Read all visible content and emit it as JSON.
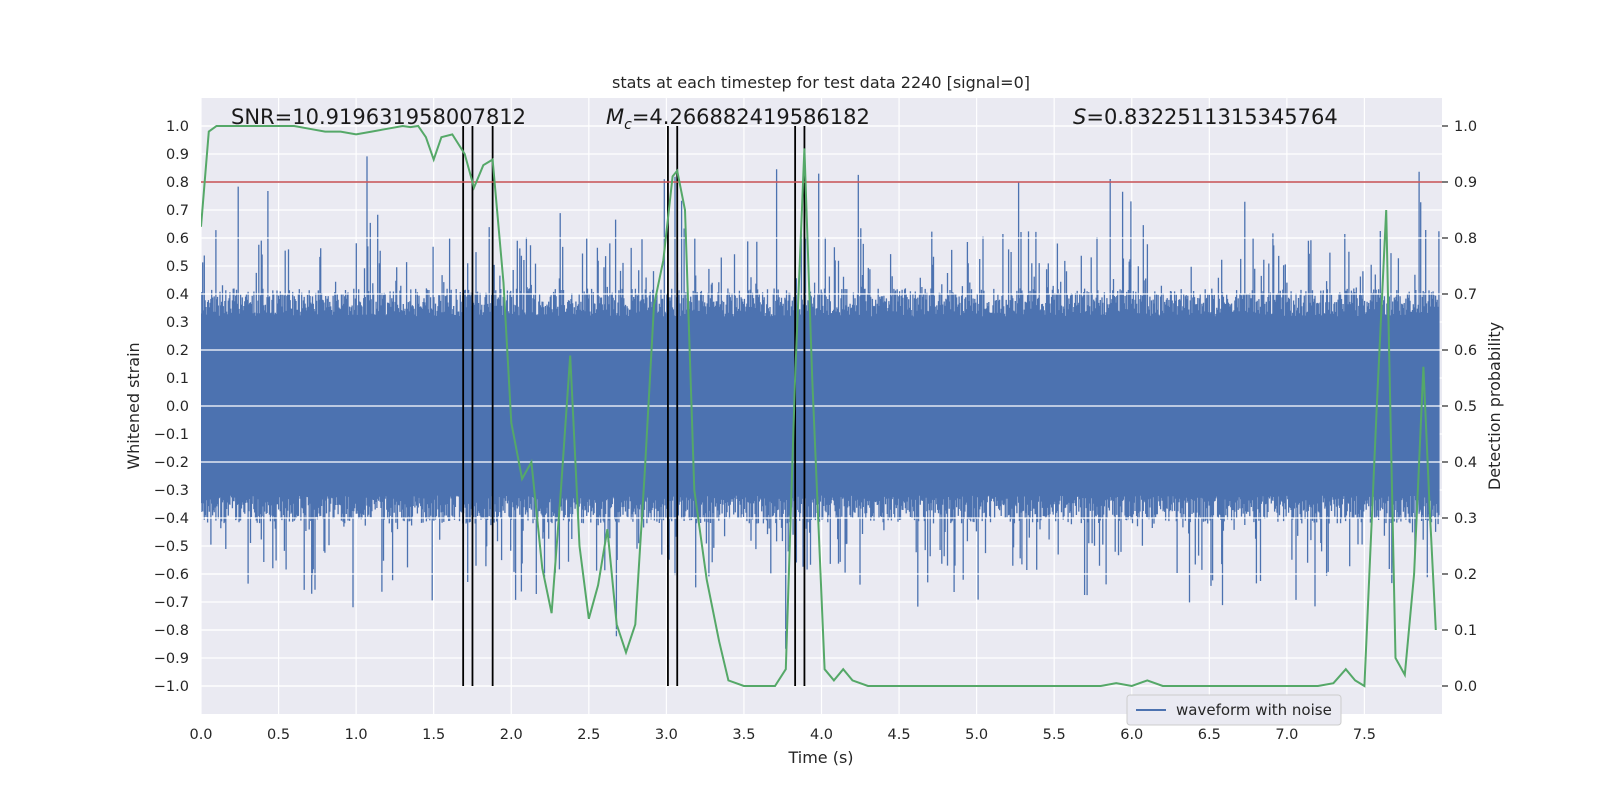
{
  "chart_data": {
    "type": "line",
    "title": "stats at each timestep for test data 2240 [signal=0]",
    "xlabel": "Time (s)",
    "ylabel_left": "Whitened strain",
    "ylabel_right": "Detection probability",
    "xlim": [
      0.0,
      8.0
    ],
    "ylim_left": [
      -1.1,
      1.1
    ],
    "ylim_right": [
      -0.05,
      1.05
    ],
    "x_ticks": [
      0.0,
      0.5,
      1.0,
      1.5,
      2.0,
      2.5,
      3.0,
      3.5,
      4.0,
      4.5,
      5.0,
      5.5,
      6.0,
      6.5,
      7.0,
      7.5
    ],
    "x_tick_labels": [
      "0.0",
      "0.5",
      "1.0",
      "1.5",
      "2.0",
      "2.5",
      "3.0",
      "3.5",
      "4.0",
      "4.5",
      "5.0",
      "5.5",
      "6.0",
      "6.5",
      "7.0",
      "7.5"
    ],
    "y_left_ticks": [
      1.0,
      0.9,
      0.8,
      0.7,
      0.6,
      0.5,
      0.4,
      0.3,
      0.2,
      0.1,
      0.0,
      -0.1,
      -0.2,
      -0.3,
      -0.4,
      -0.5,
      -0.6,
      -0.7,
      -0.8,
      -0.9,
      -1.0
    ],
    "y_left_tick_labels": [
      "1.0",
      "0.9",
      "0.8",
      "0.7",
      "0.6",
      "0.5",
      "0.4",
      "0.3",
      "0.2",
      "0.1",
      "0.0",
      "−0.1",
      "−0.2",
      "−0.3",
      "−0.4",
      "−0.5",
      "−0.6",
      "−0.7",
      "−0.8",
      "−0.9",
      "−1.0"
    ],
    "y_right_ticks": [
      1.0,
      0.9,
      0.8,
      0.7,
      0.6,
      0.5,
      0.4,
      0.3,
      0.2,
      0.1,
      0.0
    ],
    "y_right_tick_labels": [
      "1.0",
      "0.9",
      "0.8",
      "0.7",
      "0.6",
      "0.5",
      "0.4",
      "0.3",
      "0.2",
      "0.1",
      "0.0"
    ],
    "annotations": {
      "snr_text": "SNR=10.919631958007812",
      "mc_prefix": "M",
      "mc_sub": "c",
      "mc_value": "=4.266882419586182",
      "s_prefix": "S",
      "s_value": "=0.8322511315345764"
    },
    "threshold": {
      "value": 0.9,
      "axis": "right",
      "color": "#c44e52"
    },
    "vertical_lines": [
      1.69,
      1.75,
      1.88,
      3.01,
      3.07,
      3.83,
      3.89
    ],
    "waveform": {
      "name": "waveform with noise",
      "color": "#4c72b0",
      "core_amplitude": 0.32,
      "samples": 1500,
      "seed": 2240
    },
    "detection_probability": {
      "color": "#55a868",
      "x": [
        0.0,
        0.05,
        0.1,
        0.2,
        0.3,
        0.4,
        0.5,
        0.6,
        0.7,
        0.8,
        0.9,
        1.0,
        1.1,
        1.2,
        1.3,
        1.35,
        1.4,
        1.45,
        1.5,
        1.55,
        1.62,
        1.7,
        1.76,
        1.82,
        1.88,
        1.95,
        2.0,
        2.07,
        2.13,
        2.2,
        2.26,
        2.32,
        2.38,
        2.44,
        2.5,
        2.56,
        2.62,
        2.68,
        2.74,
        2.8,
        2.86,
        2.92,
        2.98,
        3.04,
        3.07,
        3.12,
        3.18,
        3.26,
        3.34,
        3.4,
        3.5,
        3.6,
        3.7,
        3.77,
        3.83,
        3.89,
        3.94,
        4.02,
        4.08,
        4.14,
        4.2,
        4.3,
        4.4,
        4.5,
        4.6,
        4.8,
        5.0,
        5.2,
        5.4,
        5.6,
        5.8,
        5.9,
        6.0,
        6.1,
        6.2,
        6.4,
        6.6,
        6.8,
        7.0,
        7.2,
        7.3,
        7.38,
        7.44,
        7.5,
        7.58,
        7.64,
        7.7,
        7.76,
        7.82,
        7.88,
        7.92,
        7.96
      ],
      "y": [
        0.82,
        0.99,
        1.0,
        1.0,
        1.0,
        1.0,
        1.0,
        1.0,
        0.995,
        0.99,
        0.99,
        0.985,
        0.99,
        0.995,
        1.0,
        0.998,
        1.0,
        0.98,
        0.94,
        0.98,
        0.985,
        0.95,
        0.89,
        0.93,
        0.94,
        0.72,
        0.47,
        0.37,
        0.4,
        0.21,
        0.13,
        0.35,
        0.59,
        0.25,
        0.12,
        0.18,
        0.28,
        0.11,
        0.06,
        0.11,
        0.38,
        0.68,
        0.76,
        0.91,
        0.92,
        0.85,
        0.35,
        0.19,
        0.08,
        0.01,
        0.0,
        0.0,
        0.0,
        0.03,
        0.55,
        0.96,
        0.55,
        0.03,
        0.01,
        0.03,
        0.01,
        0.0,
        0.0,
        0.0,
        0.0,
        0.0,
        0.0,
        0.0,
        0.0,
        0.0,
        0.0,
        0.005,
        0.0,
        0.01,
        0.0,
        0.0,
        0.0,
        0.0,
        0.0,
        0.0,
        0.005,
        0.03,
        0.01,
        0.0,
        0.5,
        0.85,
        0.05,
        0.02,
        0.2,
        0.57,
        0.32,
        0.1
      ]
    },
    "legend": {
      "entries": [
        "waveform with noise"
      ],
      "loc": "bottom-right"
    }
  }
}
